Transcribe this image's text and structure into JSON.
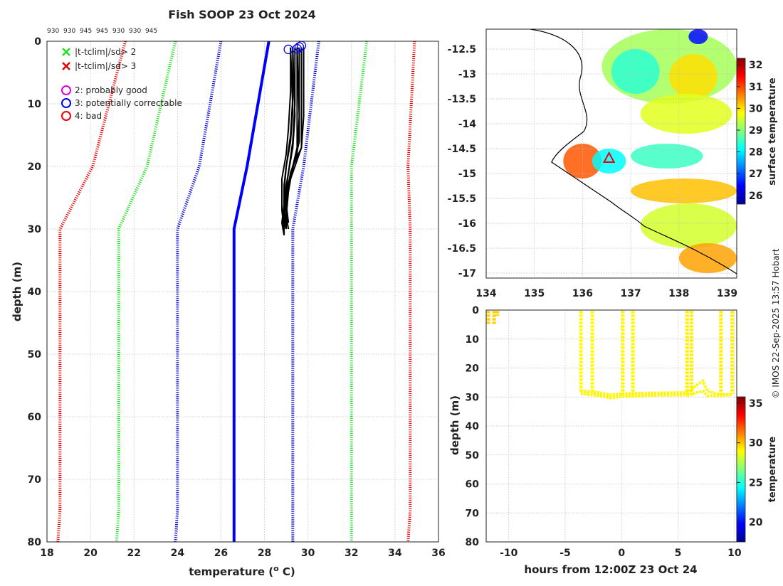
{
  "chart_data": [
    {
      "name": "profile",
      "type": "line",
      "title": "Fish SOOP 23 Oct 2024",
      "xlabel": "temperature (o C)",
      "ylabel": "depth (m)",
      "xlim": [
        18,
        36
      ],
      "ylim": [
        80,
        0
      ],
      "xticks": [
        "18",
        "20",
        "22",
        "24",
        "26",
        "28",
        "30",
        "32",
        "34",
        "36"
      ],
      "yticks": [
        "0",
        "10",
        "20",
        "30",
        "40",
        "50",
        "60",
        "70",
        "80"
      ],
      "header_labels": [
        "930",
        "930",
        "945",
        "945",
        "930",
        "930",
        "945"
      ],
      "legend": [
        {
          "symbol": "x",
          "color": "#22dd22",
          "label": "|t-tclim|/sd> 2"
        },
        {
          "symbol": "x",
          "color": "#dd0000",
          "label": "|t-tclim|/sd> 3"
        },
        {
          "symbol": "o",
          "color": "#dd00dd",
          "label": "2: probably good"
        },
        {
          "symbol": "o",
          "color": "#0000ee",
          "label": "3: potentially correctable"
        },
        {
          "symbol": "o",
          "color": "#ee0000",
          "label": "4: bad"
        }
      ],
      "series": [
        {
          "name": "clim -3sd",
          "color": "#e00000",
          "style": "dotted",
          "points": [
            [
              21.6,
              0
            ],
            [
              20.1,
              20
            ],
            [
              18.6,
              30
            ],
            [
              18.6,
              75
            ],
            [
              18.5,
              80
            ]
          ]
        },
        {
          "name": "clim -2sd",
          "color": "#22dd22",
          "style": "dotted",
          "points": [
            [
              23.9,
              0
            ],
            [
              22.6,
              20
            ],
            [
              21.3,
              30
            ],
            [
              21.3,
              75
            ],
            [
              21.2,
              80
            ]
          ]
        },
        {
          "name": "clim -1sd",
          "color": "#0000cc",
          "style": "dotted",
          "points": [
            [
              26.0,
              0
            ],
            [
              25.0,
              20
            ],
            [
              24.0,
              30
            ],
            [
              24.0,
              75
            ],
            [
              23.9,
              80
            ]
          ]
        },
        {
          "name": "clim mean",
          "color": "#0000ff",
          "style": "solid",
          "points": [
            [
              28.2,
              0
            ],
            [
              27.2,
              20
            ],
            [
              26.6,
              30
            ],
            [
              26.6,
              75
            ],
            [
              26.6,
              80
            ]
          ]
        },
        {
          "name": "clim +1sd",
          "color": "#0000cc",
          "style": "dotted",
          "points": [
            [
              30.5,
              0
            ],
            [
              29.8,
              20
            ],
            [
              29.3,
              30
            ],
            [
              29.3,
              75
            ],
            [
              29.3,
              80
            ]
          ]
        },
        {
          "name": "clim +2sd",
          "color": "#22dd22",
          "style": "dotted",
          "points": [
            [
              32.7,
              0
            ],
            [
              32.0,
              20
            ],
            [
              32.0,
              30
            ],
            [
              32.0,
              75
            ],
            [
              32.0,
              80
            ]
          ]
        },
        {
          "name": "clim +3sd",
          "color": "#e00000",
          "style": "dotted",
          "points": [
            [
              34.9,
              0
            ],
            [
              34.6,
              20
            ],
            [
              34.7,
              30
            ],
            [
              34.7,
              75
            ],
            [
              34.6,
              80
            ]
          ]
        }
      ],
      "profiles": [
        [
          [
            29.2,
            1
          ],
          [
            29.2,
            8
          ],
          [
            29.1,
            14
          ],
          [
            29.0,
            18
          ],
          [
            28.8,
            22
          ],
          [
            28.8,
            27
          ],
          [
            28.9,
            30
          ]
        ],
        [
          [
            29.3,
            1
          ],
          [
            29.3,
            9
          ],
          [
            29.2,
            15
          ],
          [
            29.0,
            20
          ],
          [
            28.9,
            24
          ],
          [
            28.9,
            28
          ],
          [
            28.9,
            31
          ]
        ],
        [
          [
            29.4,
            1
          ],
          [
            29.4,
            10
          ],
          [
            29.3,
            16
          ],
          [
            29.1,
            21
          ],
          [
            28.9,
            25
          ],
          [
            28.9,
            29
          ],
          [
            29.0,
            30
          ]
        ],
        [
          [
            29.5,
            1
          ],
          [
            29.5,
            11
          ],
          [
            29.5,
            17
          ],
          [
            29.3,
            20
          ],
          [
            29.0,
            24
          ],
          [
            29.0,
            28
          ],
          [
            29.1,
            30
          ]
        ],
        [
          [
            29.6,
            1
          ],
          [
            29.6,
            9
          ],
          [
            29.6,
            16
          ],
          [
            29.4,
            19
          ],
          [
            29.1,
            23
          ],
          [
            29.0,
            27
          ],
          [
            29.0,
            29
          ]
        ],
        [
          [
            29.7,
            1
          ],
          [
            29.7,
            10
          ],
          [
            29.7,
            17
          ],
          [
            29.5,
            19
          ],
          [
            29.2,
            22
          ],
          [
            29.0,
            26
          ],
          [
            29.1,
            29
          ]
        ],
        [
          [
            29.3,
            1
          ],
          [
            29.4,
            12
          ],
          [
            29.3,
            17
          ],
          [
            29.1,
            21
          ],
          [
            28.9,
            26
          ],
          [
            28.8,
            29
          ],
          [
            28.9,
            31
          ]
        ],
        [
          [
            29.5,
            1
          ],
          [
            29.6,
            12
          ],
          [
            29.5,
            18
          ],
          [
            29.2,
            21
          ],
          [
            29.0,
            25
          ],
          [
            28.9,
            28
          ],
          [
            29.0,
            30
          ]
        ],
        [
          [
            29.8,
            1
          ],
          [
            29.8,
            12
          ],
          [
            29.7,
            17
          ],
          [
            29.3,
            20
          ],
          [
            29.1,
            24
          ],
          [
            29.0,
            28
          ],
          [
            29.0,
            30
          ]
        ],
        [
          [
            29.2,
            1
          ],
          [
            29.3,
            11
          ],
          [
            29.2,
            16
          ],
          [
            29.0,
            20
          ],
          [
            28.9,
            23
          ],
          [
            28.9,
            27
          ],
          [
            29.0,
            29
          ]
        ]
      ],
      "flags": [
        [
          29.1,
          1.3,
          "#0000ee"
        ],
        [
          29.6,
          0.9,
          "#0000ee"
        ],
        [
          29.7,
          0.7,
          "#0000ee"
        ],
        [
          29.5,
          1.2,
          "#0000ee"
        ]
      ]
    },
    {
      "name": "map",
      "type": "heatmap",
      "xlim": [
        134,
        139.2
      ],
      "ylim": [
        -17.1,
        -12.1
      ],
      "xticks": [
        "134",
        "135",
        "136",
        "137",
        "138",
        "139"
      ],
      "yticks": [
        "-12.5",
        "-13",
        "-13.5",
        "-14",
        "-14.5",
        "-15",
        "-15.5",
        "-16",
        "-16.5",
        "-17"
      ],
      "colorbar": {
        "label": "surface temperature",
        "range": [
          25.6,
          32.3
        ],
        "ticks": [
          "26",
          "27",
          "28",
          "29",
          "30",
          "31",
          "32"
        ]
      },
      "marker": {
        "lon": 136.55,
        "lat": -14.7,
        "color": "#ee0000"
      },
      "patches": [
        {
          "lon": [
            136.4,
            139.2
          ],
          "lat": [
            -12.1,
            -13.6
          ],
          "value": 29.2
        },
        {
          "lon": [
            136.6,
            137.6
          ],
          "lat": [
            -12.5,
            -13.4
          ],
          "value": 28.4
        },
        {
          "lon": [
            137.8,
            138.8
          ],
          "lat": [
            -12.6,
            -13.5
          ],
          "value": 30.0
        },
        {
          "lon": [
            138.2,
            138.6
          ],
          "lat": [
            -12.1,
            -12.4
          ],
          "value": 26.5
        },
        {
          "lon": [
            137.2,
            139.1
          ],
          "lat": [
            -13.4,
            -14.2
          ],
          "value": 29.6
        },
        {
          "lon": [
            135.6,
            136.4
          ],
          "lat": [
            -14.4,
            -15.1
          ],
          "value": 30.9
        },
        {
          "lon": [
            136.2,
            136.9
          ],
          "lat": [
            -14.5,
            -15.0
          ],
          "value": 28.1
        },
        {
          "lon": [
            137.0,
            138.5
          ],
          "lat": [
            -14.4,
            -14.9
          ],
          "value": 28.5
        },
        {
          "lon": [
            137.0,
            139.2
          ],
          "lat": [
            -15.1,
            -15.6
          ],
          "value": 30.2
        },
        {
          "lon": [
            137.2,
            139.2
          ],
          "lat": [
            -15.6,
            -16.5
          ],
          "value": 29.5
        },
        {
          "lon": [
            138.0,
            139.2
          ],
          "lat": [
            -16.4,
            -17.0
          ],
          "value": 30.4
        }
      ]
    },
    {
      "name": "section",
      "type": "scatter",
      "xlabel": "hours from 12:00Z 23 Oct 24",
      "ylabel": "depth (m)",
      "xlim": [
        -12,
        10.2
      ],
      "ylim": [
        80,
        0
      ],
      "xticks": [
        "-10",
        "-5",
        "0",
        "5",
        "10"
      ],
      "yticks": [
        "0",
        "10",
        "20",
        "30",
        "40",
        "50",
        "60",
        "70",
        "80"
      ],
      "colorbar": {
        "label": "temperature",
        "range": [
          17.5,
          35.8
        ],
        "ticks": [
          "20",
          "25",
          "30",
          "35"
        ]
      },
      "casts": [
        {
          "hour": -11.8,
          "maxdepth": 4.8,
          "temp": 29.8
        },
        {
          "hour": -11.3,
          "maxdepth": 4.8,
          "temp": 29.8
        },
        {
          "hour": -11.0,
          "maxdepth": 2.0,
          "temp": 29.8
        },
        {
          "hour": -3.6,
          "maxdepth": 28.3,
          "temp": 29.0
        },
        {
          "hour": -2.6,
          "maxdepth": 29.0,
          "temp": 29.0
        },
        {
          "hour": 0.1,
          "maxdepth": 29.6,
          "temp": 29.1
        },
        {
          "hour": 1.0,
          "maxdepth": 29.5,
          "temp": 29.1
        },
        {
          "hour": 5.8,
          "maxdepth": 29.0,
          "temp": 29.2
        },
        {
          "hour": 6.2,
          "maxdepth": 29.3,
          "temp": 29.2
        },
        {
          "hour": 8.8,
          "maxdepth": 29.2,
          "temp": 29.2
        },
        {
          "hour": 9.8,
          "maxdepth": 29.0,
          "temp": 29.2
        }
      ],
      "tracks": [
        [
          [
            -3.6,
            28.3
          ],
          [
            -2.0,
            29.0
          ],
          [
            -1.0,
            29.8
          ],
          [
            0.1,
            29.6
          ],
          [
            1.5,
            29.3
          ],
          [
            3.0,
            29.1
          ],
          [
            5.8,
            29.0
          ]
        ],
        [
          [
            -3.6,
            28.8
          ],
          [
            -2.0,
            29.6
          ],
          [
            -1.0,
            30.3
          ],
          [
            0.1,
            29.8
          ],
          [
            1.5,
            29.7
          ],
          [
            3.0,
            29.4
          ],
          [
            5.8,
            29.3
          ]
        ],
        [
          [
            -3.6,
            27.8
          ],
          [
            -2.0,
            28.5
          ],
          [
            -1.0,
            29.2
          ],
          [
            0.1,
            28.9
          ],
          [
            1.5,
            28.7
          ],
          [
            3.0,
            28.6
          ],
          [
            5.8,
            28.5
          ]
        ],
        [
          [
            5.8,
            29.0
          ],
          [
            6.6,
            26.0
          ],
          [
            7.2,
            24.5
          ],
          [
            7.6,
            28.0
          ],
          [
            8.8,
            29.2
          ],
          [
            9.8,
            29.0
          ]
        ],
        [
          [
            5.8,
            29.6
          ],
          [
            6.6,
            28.5
          ],
          [
            7.2,
            28.0
          ],
          [
            7.6,
            29.6
          ],
          [
            8.8,
            29.5
          ],
          [
            9.8,
            29.2
          ]
        ]
      ]
    }
  ],
  "credit": "© IMOS 22-Sep-2025 13:57 Hobart"
}
